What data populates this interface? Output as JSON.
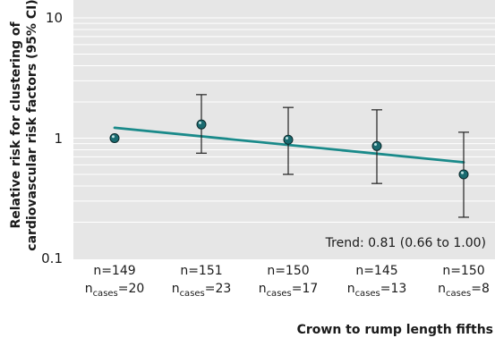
{
  "chart_data": {
    "type": "scatter",
    "y_scale": "log",
    "ylim": [
      0.1,
      10
    ],
    "y_ticks": [
      {
        "value": 10,
        "label": "10"
      },
      {
        "value": 1,
        "label": "1"
      },
      {
        "value": 0.1,
        "label": "0.1"
      }
    ],
    "ylabel_lines": [
      "Relative risk for clustering of",
      "cardiovascular risk factors (95% CI)"
    ],
    "xlabel": "Crown to rump length fifths",
    "grid": true,
    "categories": [
      {
        "n_label": "n=149",
        "cases_prefix": "n",
        "cases_sub": "cases",
        "cases_value": "=20"
      },
      {
        "n_label": "n=151",
        "cases_prefix": "n",
        "cases_sub": "cases",
        "cases_value": "=23"
      },
      {
        "n_label": "n=150",
        "cases_prefix": "n",
        "cases_sub": "cases",
        "cases_value": "=17"
      },
      {
        "n_label": "n=145",
        "cases_prefix": "n",
        "cases_sub": "cases",
        "cases_value": "=13"
      },
      {
        "n_label": "n=150",
        "cases_prefix": "n",
        "cases_sub": "cases",
        "cases_value": "=8"
      }
    ],
    "points": [
      {
        "category": 1,
        "estimate": 1.0,
        "ci": null
      },
      {
        "category": 2,
        "estimate": 1.3,
        "ci": [
          0.75,
          2.3
        ]
      },
      {
        "category": 3,
        "estimate": 0.97,
        "ci": [
          0.5,
          1.8
        ]
      },
      {
        "category": 4,
        "estimate": 0.86,
        "ci": [
          0.42,
          1.72
        ]
      },
      {
        "category": 5,
        "estimate": 0.5,
        "ci": [
          0.22,
          1.12
        ]
      }
    ],
    "trend_line": {
      "start": {
        "category": 1,
        "value": 1.22
      },
      "end": {
        "category": 5,
        "value": 0.63
      }
    },
    "annotation": "Trend: 0.81 (0.66 to 1.00)",
    "colors": {
      "plot_background": "#e6e6e6",
      "gridline": "#ffffff",
      "trend_line": "#1a8a8a",
      "marker": "#1a6b70",
      "error_bar": "#222222"
    }
  }
}
